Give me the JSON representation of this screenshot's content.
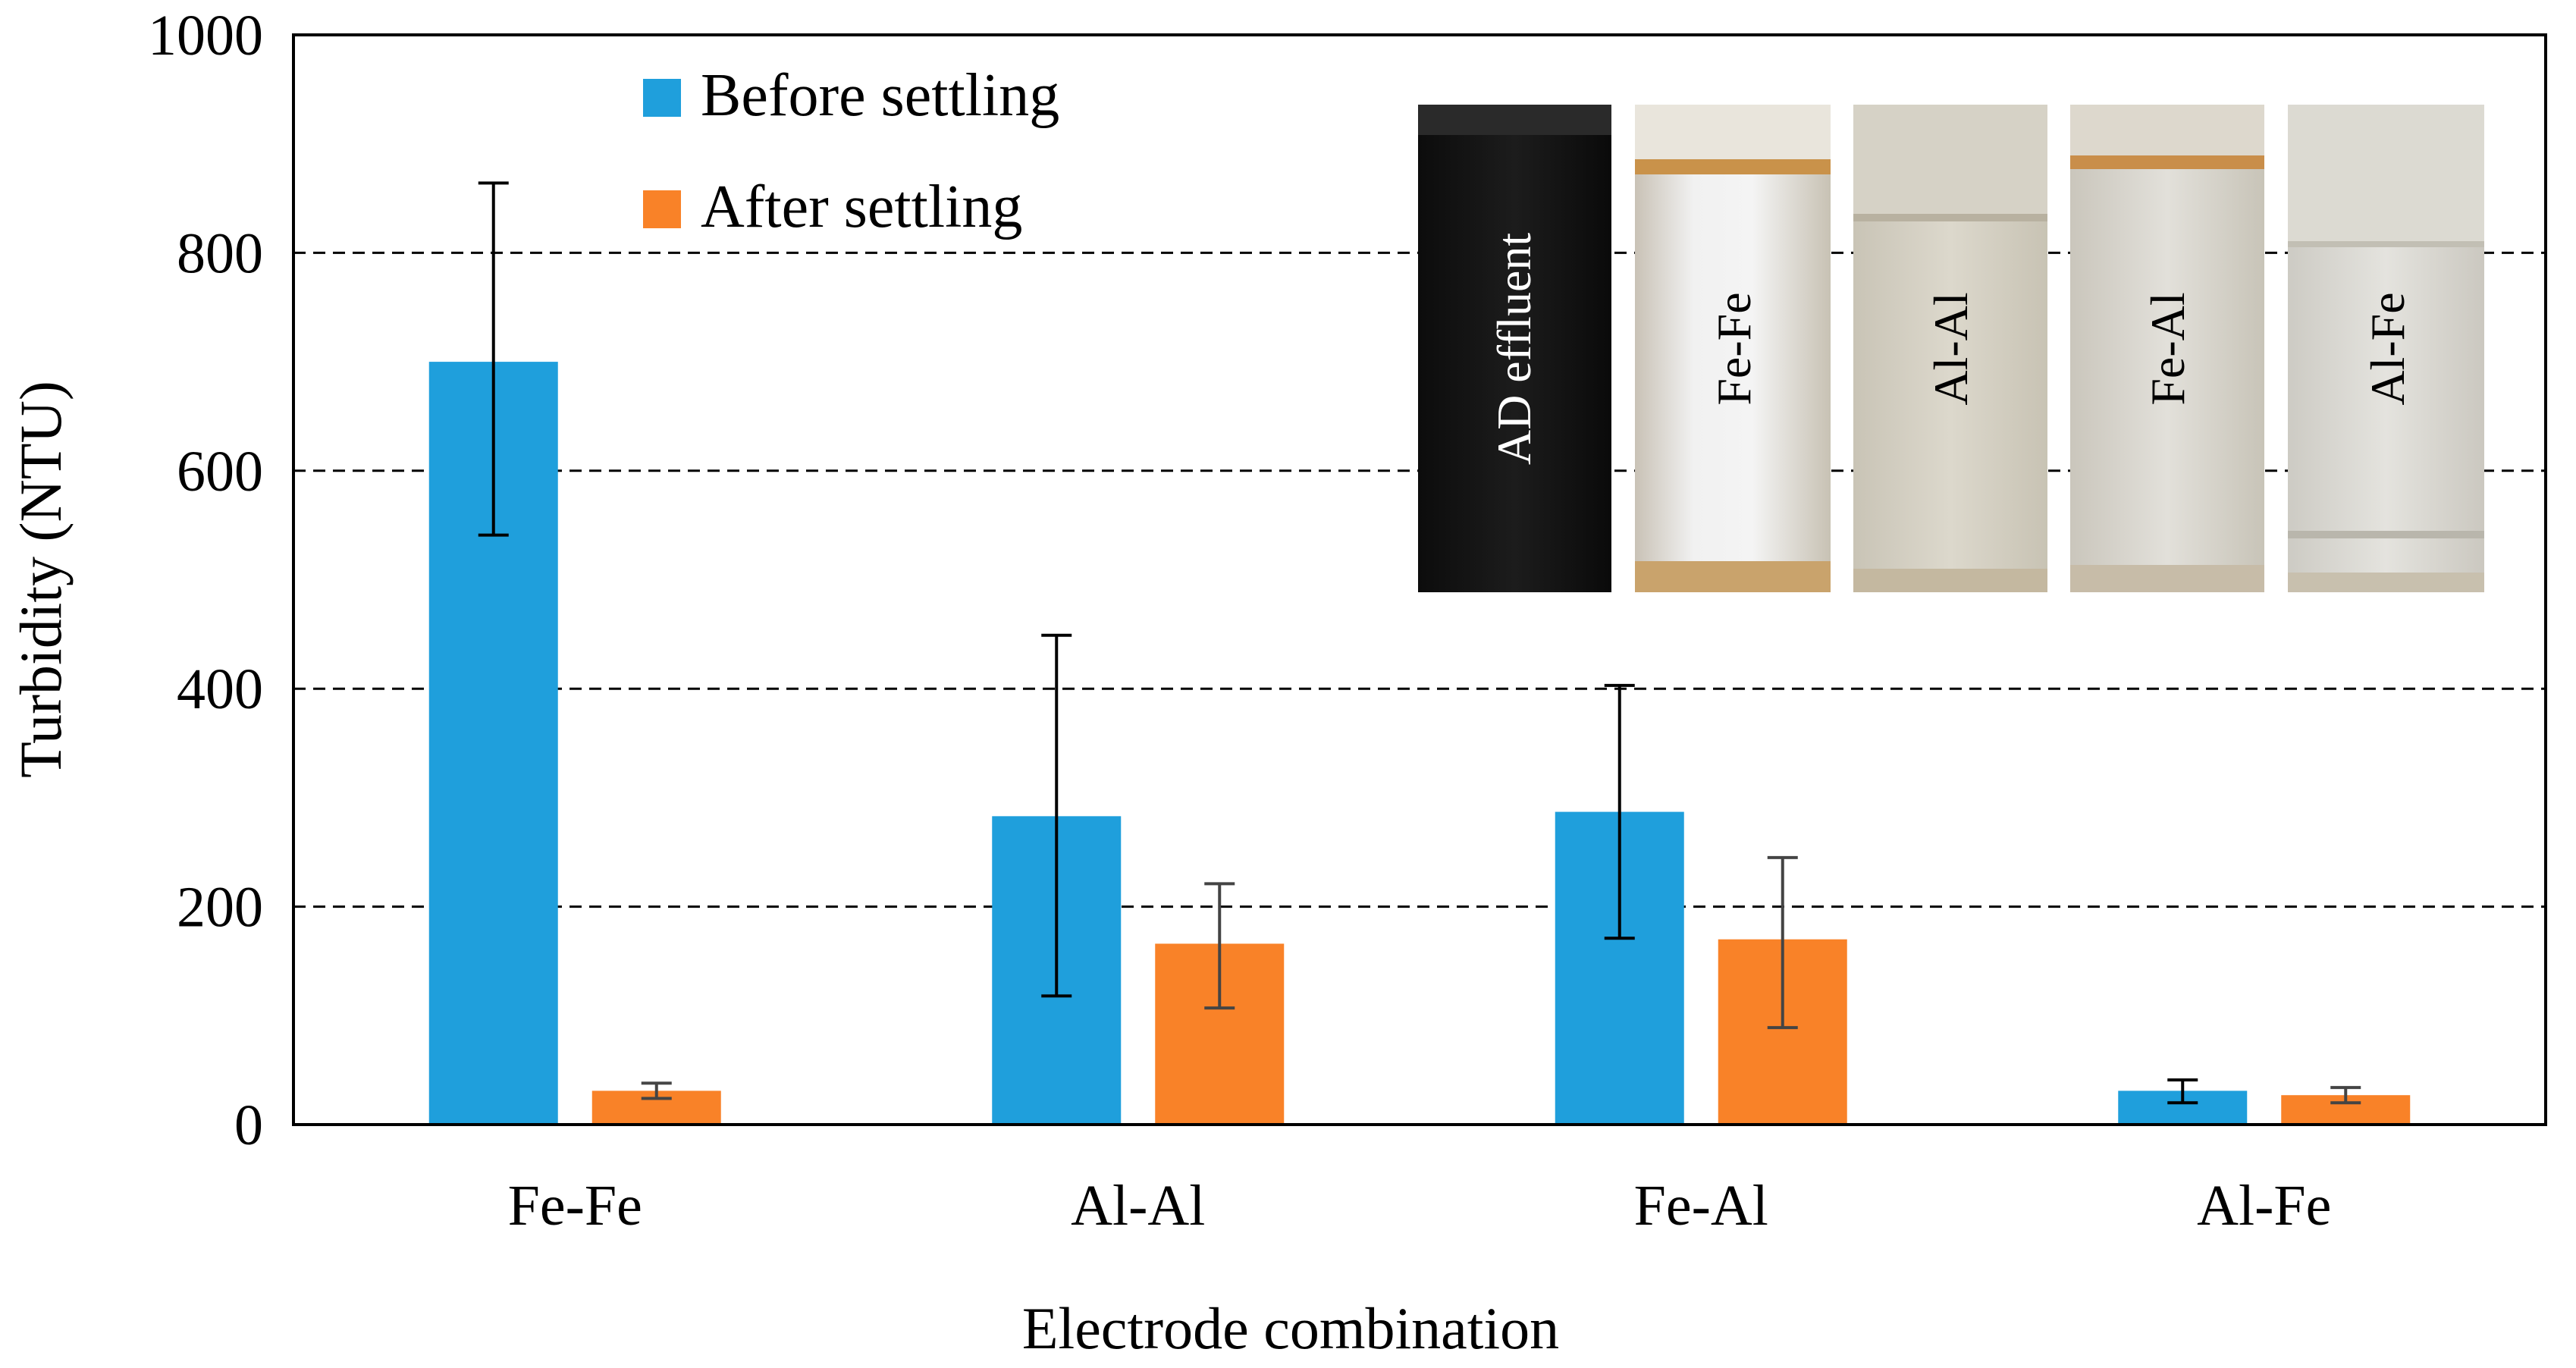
{
  "chart_data": {
    "type": "bar",
    "title": "",
    "xlabel": "Electrode combination",
    "ylabel": "Turbidity (NTU)",
    "ylim": [
      0,
      1000
    ],
    "yticks": [
      0,
      200,
      400,
      600,
      800,
      1000
    ],
    "grid": "horizontal dashed",
    "legend_position": "top-left",
    "categories": [
      "Fe-Fe",
      "Al-Al",
      "Fe-Al",
      "Al-Fe"
    ],
    "series": [
      {
        "name": "Before settling",
        "color": "#1f9fdc",
        "values": [
          700,
          283,
          287,
          31
        ],
        "error_low": [
          541,
          118,
          171,
          20
        ],
        "error_high": [
          864,
          449,
          403,
          41
        ]
      },
      {
        "name": "After settling",
        "color": "#f98228",
        "values": [
          31,
          166,
          170,
          27
        ],
        "error_low": [
          24,
          107,
          89,
          20
        ],
        "error_high": [
          38,
          221,
          245,
          34
        ]
      }
    ],
    "inset_labels": [
      "AD effluent",
      "Fe-Fe",
      "Al-Al",
      "Fe-Al",
      "Al-Fe"
    ]
  }
}
